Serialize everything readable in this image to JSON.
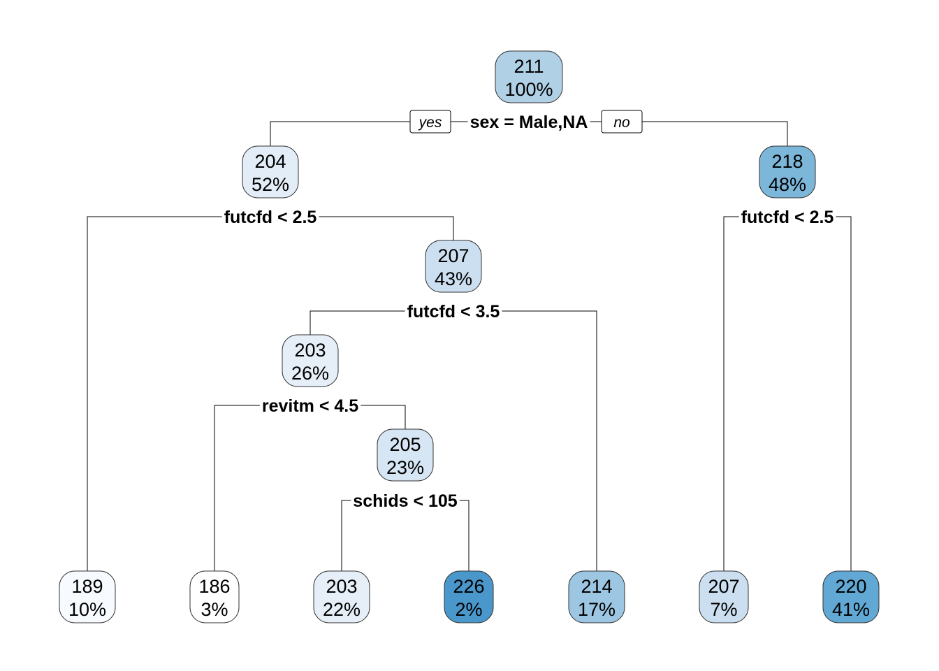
{
  "tree": {
    "nodes": [
      {
        "id": "n1",
        "value": "211",
        "percent": "100%",
        "color": "#b0d0e6"
      },
      {
        "id": "n2",
        "value": "204",
        "percent": "52%",
        "color": "#e3edf7"
      },
      {
        "id": "n3",
        "value": "218",
        "percent": "48%",
        "color": "#7cb6d9"
      },
      {
        "id": "n5",
        "value": "207",
        "percent": "43%",
        "color": "#ccdff0"
      },
      {
        "id": "n10",
        "value": "203",
        "percent": "26%",
        "color": "#e6eff8"
      },
      {
        "id": "n21",
        "value": "205",
        "percent": "23%",
        "color": "#d7e6f4"
      },
      {
        "id": "l1",
        "value": "189",
        "percent": "10%",
        "color": "#f7fbff"
      },
      {
        "id": "l2",
        "value": "186",
        "percent": "3%",
        "color": "#ffffff"
      },
      {
        "id": "l3",
        "value": "203",
        "percent": "22%",
        "color": "#e6eff8"
      },
      {
        "id": "l4",
        "value": "226",
        "percent": "2%",
        "color": "#4a98cb"
      },
      {
        "id": "l5",
        "value": "214",
        "percent": "17%",
        "color": "#9cc6e2"
      },
      {
        "id": "l6",
        "value": "207",
        "percent": "7%",
        "color": "#ccdff0"
      },
      {
        "id": "l7",
        "value": "220",
        "percent": "41%",
        "color": "#62a8d4"
      }
    ],
    "splits": [
      {
        "id": "s1",
        "label": "sex = Male,NA"
      },
      {
        "id": "s2",
        "label": "futcfd < 2.5"
      },
      {
        "id": "s3",
        "label": "futcfd < 2.5"
      },
      {
        "id": "s5",
        "label": "futcfd < 3.5"
      },
      {
        "id": "s10",
        "label": "revitm < 4.5"
      },
      {
        "id": "s21",
        "label": "schids < 105"
      }
    ],
    "yes_label": "yes",
    "no_label": "no"
  }
}
